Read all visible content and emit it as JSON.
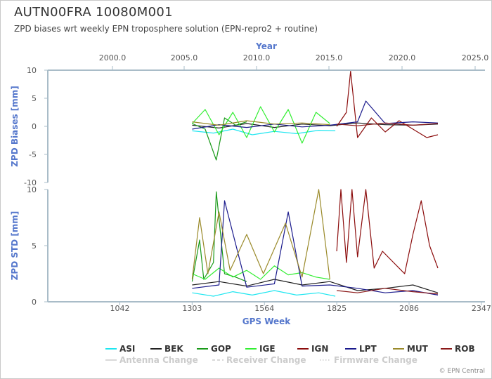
{
  "title": "AUTN00FRA 10080M001",
  "subtitle": "ZPD biases wrt weekly EPN troposphere solution (EPN-repro2 + routine)",
  "credit": "© EPN Central",
  "chart_data": [
    {
      "type": "line",
      "name": "biases",
      "ylabel": "ZPD Biases [mm]",
      "ylim": [
        -10,
        10
      ],
      "yticks": [
        10,
        5,
        0,
        -5,
        -10
      ],
      "x2label": "Year",
      "x2ticks": [
        "2000.0",
        "2005.0",
        "2010.0",
        "2015.0",
        "2020.0",
        "2025.0"
      ],
      "xlim_gps_week": [
        782,
        2360
      ],
      "series": [
        {
          "name": "ASI",
          "color": "#1ee6f0",
          "x": [
            1303,
            1380,
            1450,
            1520,
            1600,
            1680,
            1760,
            1820
          ],
          "y": [
            -0.8,
            -1.2,
            -0.5,
            -1.5,
            -0.9,
            -1.3,
            -0.7,
            -0.8
          ]
        },
        {
          "name": "BEK",
          "color": "#222222",
          "x": [
            1303,
            1400,
            1500,
            1600,
            1700,
            1800,
            1900,
            2000,
            2100,
            2190
          ],
          "y": [
            0.2,
            -0.3,
            0.5,
            -0.2,
            0.4,
            0.1,
            0.6,
            0.3,
            0.2,
            0.4
          ]
        },
        {
          "name": "GOP",
          "color": "#1a9a1a",
          "x": [
            1303,
            1350,
            1390,
            1420,
            1460,
            1500
          ],
          "y": [
            0.5,
            -0.5,
            -6,
            1.5,
            0.2,
            0.8
          ]
        },
        {
          "name": "IGE",
          "color": "#33ee33",
          "x": [
            1303,
            1350,
            1400,
            1450,
            1500,
            1550,
            1600,
            1650,
            1700,
            1750,
            1800
          ],
          "y": [
            0.5,
            3,
            -1.5,
            2.5,
            -2,
            3.5,
            -1,
            3,
            -3,
            2.5,
            0.5
          ]
        },
        {
          "name": "IGN",
          "color": "#8b0c0c",
          "x": [
            1825,
            1860,
            1875,
            1900,
            1950,
            2000,
            2050,
            2100,
            2150,
            2190
          ],
          "y": [
            0,
            2.5,
            9.8,
            -2,
            1.5,
            -1,
            1,
            -0.5,
            -2,
            -1.5
          ]
        },
        {
          "name": "LPT",
          "color": "#1a1a8c",
          "x": [
            1303,
            1400,
            1500,
            1600,
            1700,
            1800,
            1900,
            1930,
            2000,
            2100,
            2190
          ],
          "y": [
            -0.5,
            0.3,
            -0.2,
            0.4,
            -0.1,
            0.2,
            0.8,
            4.5,
            0.5,
            0.8,
            0.6
          ]
        },
        {
          "name": "MUT",
          "color": "#9a8a2a",
          "x": [
            1303,
            1400,
            1500,
            1600,
            1700,
            1800
          ],
          "y": [
            0.8,
            0.2,
            1.0,
            0.4,
            0.6,
            0.3
          ]
        },
        {
          "name": "ROB",
          "color": "#8b1818",
          "x": [
            1825,
            1900,
            2000,
            2100,
            2190
          ],
          "y": [
            0.4,
            0.1,
            0.6,
            0.2,
            0.5
          ]
        }
      ]
    },
    {
      "type": "line",
      "name": "std",
      "ylabel": "ZPD STD [mm]",
      "xlabel": "GPS Week",
      "ylim": [
        0,
        10
      ],
      "yticks": [
        10,
        5,
        0
      ],
      "xticks": [
        1042,
        1303,
        1564,
        1825,
        2086,
        2347
      ],
      "xlim": [
        782,
        2360
      ],
      "series": [
        {
          "name": "ASI",
          "color": "#1ee6f0",
          "x": [
            1303,
            1380,
            1450,
            1520,
            1600,
            1680,
            1760,
            1820
          ],
          "y": [
            0.8,
            0.5,
            0.9,
            0.6,
            1.0,
            0.6,
            0.8,
            0.5
          ]
        },
        {
          "name": "BEK",
          "color": "#222222",
          "x": [
            1303,
            1400,
            1500,
            1600,
            1700,
            1800,
            1900,
            2000,
            2100,
            2190
          ],
          "y": [
            1.5,
            1.8,
            1.4,
            2.0,
            1.5,
            1.8,
            1.0,
            1.2,
            1.5,
            0.8
          ]
        },
        {
          "name": "GOP",
          "color": "#1a9a1a",
          "x": [
            1303,
            1330,
            1345,
            1380,
            1390,
            1420,
            1460,
            1500
          ],
          "y": [
            1.8,
            5.5,
            2.0,
            3.5,
            9.8,
            2.5,
            2.2,
            1.8
          ]
        },
        {
          "name": "IGE",
          "color": "#33ee33",
          "x": [
            1303,
            1350,
            1400,
            1450,
            1500,
            1550,
            1600,
            1650,
            1700,
            1750,
            1800
          ],
          "y": [
            2.5,
            2.0,
            3.0,
            2.2,
            2.8,
            2.0,
            3.2,
            2.4,
            2.6,
            2.2,
            2.0
          ]
        },
        {
          "name": "IGN",
          "color": "#8b0c0c",
          "x": [
            1825,
            1840,
            1860,
            1880,
            1900,
            1930,
            1960,
            1990,
            2030,
            2070,
            2100,
            2130,
            2160,
            2190
          ],
          "y": [
            4.5,
            10,
            3.5,
            10,
            4.0,
            10,
            3.0,
            4.5,
            3.5,
            2.5,
            6.0,
            9.0,
            5.0,
            3.0
          ]
        },
        {
          "name": "LPT",
          "color": "#1a1a8c",
          "x": [
            1303,
            1400,
            1420,
            1500,
            1600,
            1650,
            1700,
            1800,
            1900,
            2000,
            2100,
            2190
          ],
          "y": [
            1.2,
            1.5,
            9.0,
            1.3,
            1.6,
            8.0,
            1.4,
            1.5,
            1.2,
            0.8,
            1.0,
            0.6
          ]
        },
        {
          "name": "MUT",
          "color": "#9a8a2a",
          "x": [
            1303,
            1330,
            1360,
            1400,
            1440,
            1500,
            1560,
            1640,
            1700,
            1760,
            1800
          ],
          "y": [
            2.0,
            7.5,
            2.5,
            8.0,
            2.8,
            6.0,
            2.5,
            7.0,
            2.2,
            10,
            2.0
          ]
        },
        {
          "name": "ROB",
          "color": "#8b1818",
          "x": [
            1825,
            1900,
            2000,
            2100,
            2190
          ],
          "y": [
            1.0,
            0.8,
            1.2,
            0.9,
            0.7
          ]
        }
      ]
    }
  ],
  "legend": {
    "items": [
      {
        "label": "ASI",
        "color": "#1ee6f0"
      },
      {
        "label": "BEK",
        "color": "#222222"
      },
      {
        "label": "GOP",
        "color": "#1a9a1a"
      },
      {
        "label": "IGE",
        "color": "#33ee33"
      },
      {
        "label": "IGN",
        "color": "#8b0c0c"
      },
      {
        "label": "LPT",
        "color": "#1a1a8c"
      },
      {
        "label": "MUT",
        "color": "#9a8a2a"
      },
      {
        "label": "ROB",
        "color": "#8b1818"
      }
    ],
    "change_items": [
      {
        "label": "Antenna Change",
        "style": "solid"
      },
      {
        "label": "Receiver Change",
        "style": "dashed"
      },
      {
        "label": "Firmware Change",
        "style": "dotted"
      }
    ]
  }
}
